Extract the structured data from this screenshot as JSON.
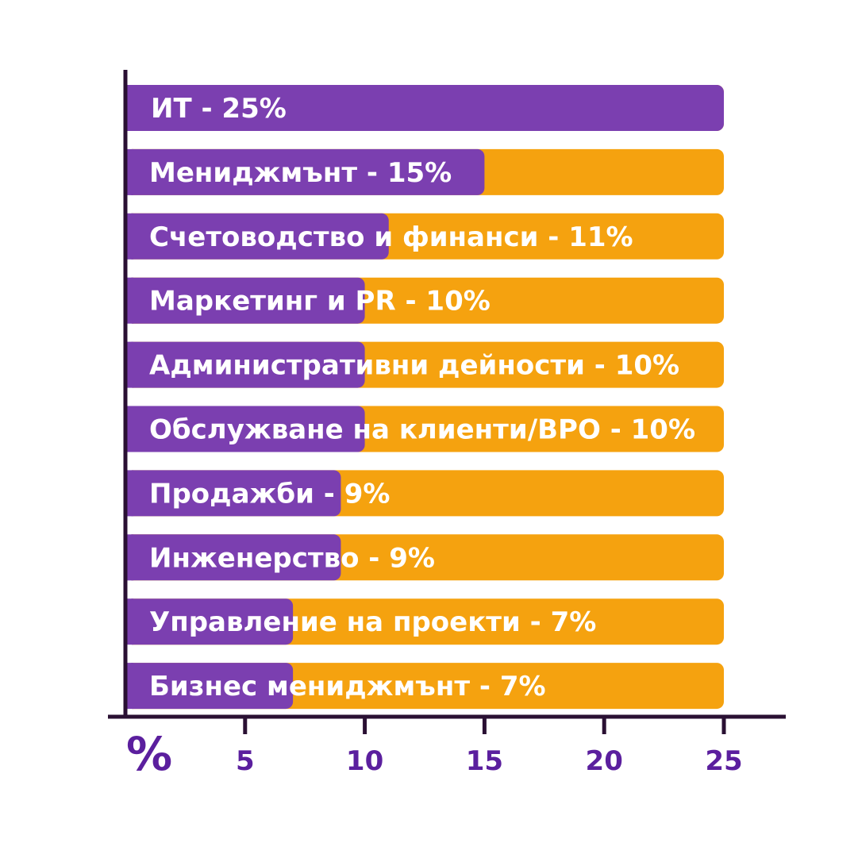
{
  "chart_data": {
    "type": "bar",
    "orientation": "horizontal",
    "categories": [
      "ИТ",
      "Мениджмънт",
      "Счетоводство и финанси",
      "Маркетинг и PR",
      "Административни дейности",
      "Обслужване на клиенти/BPO",
      "Продажби",
      "Инженерство",
      "Управление на проекти",
      "Бизнес мениджмънт"
    ],
    "values": [
      25,
      15,
      11,
      10,
      10,
      10,
      9,
      9,
      7,
      7
    ],
    "labels": [
      "ИТ - 25%",
      "Мениджмънт - 15%",
      "Счетоводство и финанси - 11%",
      "Маркетинг и PR - 10%",
      "Административни дейности - 10%",
      "Обслужване на клиенти/BPO - 10%",
      "Продажби - 9%",
      "Инженерство - 9%",
      "Управление на проекти - 7%",
      "Бизнес мениджмънт - 7%"
    ],
    "x_unit_label": "%",
    "x_ticks": [
      "5",
      "10",
      "15",
      "20",
      "25"
    ],
    "xlim": [
      0,
      25
    ],
    "background_track_max": 25,
    "grid": false,
    "colors": {
      "bar": "#7b3fb0",
      "track": "#f5a20f",
      "axis": "#2a1033",
      "tick_text": "#5b1f9e",
      "label_text": "#ffffff"
    }
  }
}
